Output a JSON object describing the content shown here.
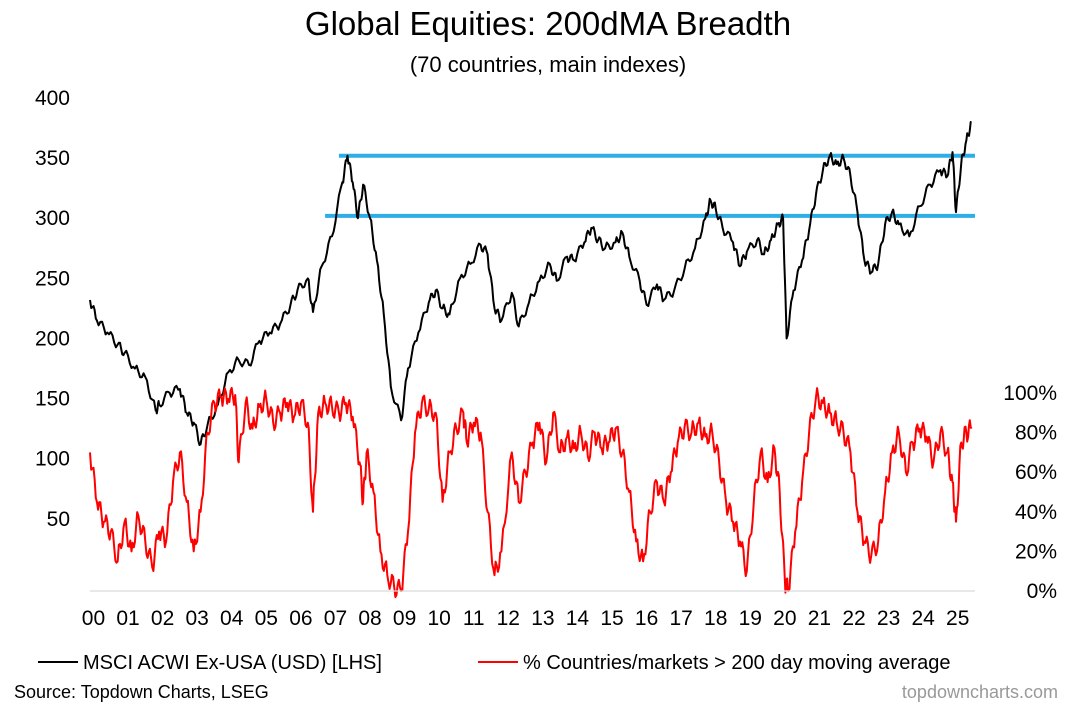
{
  "chart_data": {
    "type": "line",
    "title": "Global Equities: 200dMA Breadth",
    "subtitle": "(70 countries, main indexes)",
    "x_ticks": [
      "00",
      "01",
      "02",
      "03",
      "04",
      "05",
      "06",
      "07",
      "08",
      "09",
      "10",
      "11",
      "12",
      "13",
      "14",
      "15",
      "16",
      "17",
      "18",
      "19",
      "20",
      "21",
      "22",
      "23",
      "24",
      "25"
    ],
    "xlim": [
      2000,
      2025.6
    ],
    "left_axis": {
      "ticks": [
        "400",
        "350",
        "300",
        "250",
        "200",
        "150",
        "100",
        "50"
      ],
      "values": [
        400,
        350,
        300,
        250,
        200,
        150,
        100,
        50
      ],
      "ylim": [
        -10,
        400
      ]
    },
    "right_axis": {
      "ticks": [
        "100%",
        "80%",
        "60%",
        "40%",
        "20%",
        "0%"
      ],
      "values": [
        100,
        80,
        60,
        40,
        20,
        0
      ],
      "ylim": [
        0,
        100
      ]
    },
    "series": [
      {
        "name": "MSCI ACWI Ex-USA (USD) [LHS]",
        "axis": "left",
        "color": "#000000",
        "points": [
          [
            2000.0,
            232
          ],
          [
            2000.2,
            215
          ],
          [
            2000.5,
            205
          ],
          [
            2000.8,
            195
          ],
          [
            2001.0,
            188
          ],
          [
            2001.3,
            175
          ],
          [
            2001.6,
            168
          ],
          [
            2001.9,
            140
          ],
          [
            2002.0,
            145
          ],
          [
            2002.3,
            155
          ],
          [
            2002.6,
            158
          ],
          [
            2002.8,
            138
          ],
          [
            2003.0,
            130
          ],
          [
            2003.2,
            112
          ],
          [
            2003.4,
            128
          ],
          [
            2003.7,
            145
          ],
          [
            2004.0,
            172
          ],
          [
            2004.3,
            182
          ],
          [
            2004.6,
            178
          ],
          [
            2004.9,
            198
          ],
          [
            2005.2,
            205
          ],
          [
            2005.5,
            212
          ],
          [
            2005.8,
            228
          ],
          [
            2006.0,
            240
          ],
          [
            2006.3,
            250
          ],
          [
            2006.45,
            222
          ],
          [
            2006.7,
            260
          ],
          [
            2007.0,
            285
          ],
          [
            2007.3,
            330
          ],
          [
            2007.45,
            352
          ],
          [
            2007.6,
            330
          ],
          [
            2007.75,
            300
          ],
          [
            2007.9,
            328
          ],
          [
            2008.1,
            300
          ],
          [
            2008.3,
            265
          ],
          [
            2008.5,
            220
          ],
          [
            2008.7,
            160
          ],
          [
            2009.0,
            132
          ],
          [
            2009.2,
            175
          ],
          [
            2009.5,
            205
          ],
          [
            2009.8,
            230
          ],
          [
            2010.0,
            240
          ],
          [
            2010.2,
            225
          ],
          [
            2010.4,
            220
          ],
          [
            2010.7,
            250
          ],
          [
            2011.0,
            262
          ],
          [
            2011.3,
            278
          ],
          [
            2011.5,
            270
          ],
          [
            2011.7,
            225
          ],
          [
            2011.9,
            215
          ],
          [
            2012.2,
            238
          ],
          [
            2012.4,
            210
          ],
          [
            2012.7,
            230
          ],
          [
            2013.0,
            248
          ],
          [
            2013.3,
            262
          ],
          [
            2013.5,
            248
          ],
          [
            2013.8,
            268
          ],
          [
            2014.0,
            265
          ],
          [
            2014.3,
            280
          ],
          [
            2014.5,
            292
          ],
          [
            2014.7,
            282
          ],
          [
            2014.9,
            275
          ],
          [
            2015.2,
            280
          ],
          [
            2015.4,
            288
          ],
          [
            2015.6,
            268
          ],
          [
            2015.9,
            248
          ],
          [
            2016.1,
            228
          ],
          [
            2016.4,
            245
          ],
          [
            2016.6,
            232
          ],
          [
            2016.9,
            240
          ],
          [
            2017.2,
            258
          ],
          [
            2017.5,
            275
          ],
          [
            2017.8,
            300
          ],
          [
            2017.95,
            315
          ],
          [
            2018.1,
            308
          ],
          [
            2018.3,
            292
          ],
          [
            2018.6,
            280
          ],
          [
            2018.8,
            260
          ],
          [
            2019.0,
            272
          ],
          [
            2019.3,
            282
          ],
          [
            2019.5,
            270
          ],
          [
            2019.7,
            282
          ],
          [
            2019.9,
            295
          ],
          [
            2020.05,
            300
          ],
          [
            2020.15,
            200
          ],
          [
            2020.35,
            240
          ],
          [
            2020.6,
            265
          ],
          [
            2020.8,
            290
          ],
          [
            2021.0,
            320
          ],
          [
            2021.2,
            340
          ],
          [
            2021.4,
            352
          ],
          [
            2021.6,
            345
          ],
          [
            2021.8,
            350
          ],
          [
            2022.0,
            335
          ],
          [
            2022.2,
            305
          ],
          [
            2022.4,
            265
          ],
          [
            2022.6,
            255
          ],
          [
            2022.8,
            262
          ],
          [
            2023.0,
            295
          ],
          [
            2023.2,
            305
          ],
          [
            2023.4,
            295
          ],
          [
            2023.7,
            285
          ],
          [
            2024.0,
            310
          ],
          [
            2024.3,
            328
          ],
          [
            2024.6,
            340
          ],
          [
            2024.8,
            335
          ],
          [
            2024.95,
            355
          ],
          [
            2025.05,
            305
          ],
          [
            2025.2,
            345
          ],
          [
            2025.35,
            365
          ],
          [
            2025.5,
            380
          ]
        ]
      },
      {
        "name": "% Countries/markets > 200 day moving average",
        "axis": "right",
        "color": "#ff0000",
        "points": [
          [
            2000.0,
            70
          ],
          [
            2000.2,
            45
          ],
          [
            2000.4,
            35
          ],
          [
            2000.6,
            30
          ],
          [
            2000.8,
            15
          ],
          [
            2001.0,
            35
          ],
          [
            2001.2,
            20
          ],
          [
            2001.4,
            38
          ],
          [
            2001.6,
            25
          ],
          [
            2001.8,
            12
          ],
          [
            2002.0,
            30
          ],
          [
            2002.2,
            25
          ],
          [
            2002.4,
            55
          ],
          [
            2002.6,
            70
          ],
          [
            2002.8,
            45
          ],
          [
            2003.0,
            20
          ],
          [
            2003.2,
            40
          ],
          [
            2003.4,
            80
          ],
          [
            2003.6,
            95
          ],
          [
            2003.8,
            98
          ],
          [
            2004.0,
            97
          ],
          [
            2004.2,
            99
          ],
          [
            2004.3,
            65
          ],
          [
            2004.5,
            95
          ],
          [
            2004.7,
            82
          ],
          [
            2004.9,
            93
          ],
          [
            2005.1,
            97
          ],
          [
            2005.3,
            85
          ],
          [
            2005.5,
            90
          ],
          [
            2005.7,
            95
          ],
          [
            2005.9,
            88
          ],
          [
            2006.1,
            95
          ],
          [
            2006.3,
            85
          ],
          [
            2006.45,
            40
          ],
          [
            2006.6,
            90
          ],
          [
            2006.8,
            95
          ],
          [
            2007.0,
            93
          ],
          [
            2007.2,
            90
          ],
          [
            2007.4,
            95
          ],
          [
            2007.6,
            88
          ],
          [
            2007.8,
            65
          ],
          [
            2007.9,
            45
          ],
          [
            2008.0,
            70
          ],
          [
            2008.2,
            50
          ],
          [
            2008.4,
            20
          ],
          [
            2008.6,
            8
          ],
          [
            2008.8,
            2
          ],
          [
            2009.0,
            0
          ],
          [
            2009.2,
            30
          ],
          [
            2009.4,
            80
          ],
          [
            2009.6,
            95
          ],
          [
            2009.8,
            92
          ],
          [
            2010.0,
            90
          ],
          [
            2010.2,
            45
          ],
          [
            2010.4,
            70
          ],
          [
            2010.6,
            82
          ],
          [
            2010.8,
            90
          ],
          [
            2010.9,
            75
          ],
          [
            2011.1,
            85
          ],
          [
            2011.3,
            80
          ],
          [
            2011.5,
            40
          ],
          [
            2011.7,
            8
          ],
          [
            2011.9,
            20
          ],
          [
            2012.2,
            70
          ],
          [
            2012.4,
            45
          ],
          [
            2012.6,
            60
          ],
          [
            2012.8,
            75
          ],
          [
            2013.0,
            85
          ],
          [
            2013.2,
            65
          ],
          [
            2013.4,
            90
          ],
          [
            2013.6,
            70
          ],
          [
            2013.8,
            78
          ],
          [
            2014.0,
            72
          ],
          [
            2014.2,
            80
          ],
          [
            2014.4,
            68
          ],
          [
            2014.6,
            80
          ],
          [
            2014.8,
            72
          ],
          [
            2015.0,
            75
          ],
          [
            2015.2,
            82
          ],
          [
            2015.4,
            70
          ],
          [
            2015.6,
            50
          ],
          [
            2015.8,
            25
          ],
          [
            2016.0,
            15
          ],
          [
            2016.2,
            40
          ],
          [
            2016.4,
            55
          ],
          [
            2016.6,
            45
          ],
          [
            2016.8,
            60
          ],
          [
            2017.0,
            75
          ],
          [
            2017.2,
            83
          ],
          [
            2017.4,
            80
          ],
          [
            2017.6,
            85
          ],
          [
            2017.8,
            78
          ],
          [
            2018.0,
            80
          ],
          [
            2018.2,
            65
          ],
          [
            2018.4,
            45
          ],
          [
            2018.6,
            35
          ],
          [
            2018.8,
            25
          ],
          [
            2019.0,
            10
          ],
          [
            2019.2,
            45
          ],
          [
            2019.4,
            70
          ],
          [
            2019.6,
            55
          ],
          [
            2019.8,
            72
          ],
          [
            2019.95,
            50
          ],
          [
            2020.1,
            5
          ],
          [
            2020.2,
            0
          ],
          [
            2020.4,
            30
          ],
          [
            2020.6,
            55
          ],
          [
            2020.8,
            80
          ],
          [
            2021.0,
            98
          ],
          [
            2021.2,
            95
          ],
          [
            2021.4,
            90
          ],
          [
            2021.6,
            85
          ],
          [
            2021.8,
            80
          ],
          [
            2022.0,
            70
          ],
          [
            2022.2,
            40
          ],
          [
            2022.4,
            25
          ],
          [
            2022.6,
            18
          ],
          [
            2022.8,
            25
          ],
          [
            2023.0,
            50
          ],
          [
            2023.2,
            70
          ],
          [
            2023.4,
            80
          ],
          [
            2023.6,
            60
          ],
          [
            2023.8,
            75
          ],
          [
            2024.0,
            82
          ],
          [
            2024.2,
            78
          ],
          [
            2024.4,
            65
          ],
          [
            2024.6,
            80
          ],
          [
            2024.8,
            70
          ],
          [
            2024.95,
            55
          ],
          [
            2025.05,
            35
          ],
          [
            2025.2,
            75
          ],
          [
            2025.35,
            80
          ],
          [
            2025.5,
            82
          ]
        ]
      }
    ],
    "reference_lines": [
      {
        "axis": "left",
        "value": 352,
        "x_from": 2007.2,
        "x_to": 2025.6,
        "color": "#2eaee6"
      },
      {
        "axis": "left",
        "value": 302,
        "x_from": 2006.8,
        "x_to": 2025.6,
        "color": "#2eaee6"
      }
    ],
    "legend": [
      {
        "label": "MSCI ACWI Ex-USA (USD) [LHS]",
        "color": "#000000"
      },
      {
        "label": "% Countries/markets > 200 day moving average",
        "color": "#ff0000"
      }
    ],
    "legend_position": "bottom",
    "grid": false
  },
  "source": "Source: Topdown Charts, LSEG",
  "watermark": "topdowncharts.com"
}
